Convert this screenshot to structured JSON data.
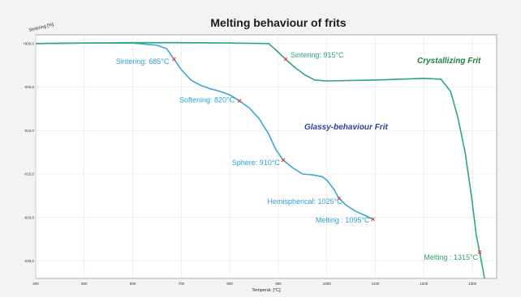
{
  "chart_data": {
    "type": "line",
    "title": "Melting behaviour of frits",
    "xlabel": "Temperat. [°C]",
    "ylabel": "Sintering [%]",
    "xlim": [
      400,
      1350
    ],
    "ylim": [
      -27,
      1
    ],
    "x_ticks": [
      "400",
      "500",
      "600",
      "700",
      "800",
      "900",
      "1000",
      "1100",
      "1200",
      "1300"
    ],
    "y_ticks": [
      "+000,0",
      "-005,0",
      "-010,0",
      "-015,0",
      "-020,0",
      "-025,0"
    ],
    "grid": true,
    "series": [
      {
        "name": "Glassy-behaviour Frit",
        "color": "#3aa6d6",
        "points": [
          [
            400,
            0
          ],
          [
            500,
            0.05
          ],
          [
            550,
            0.05
          ],
          [
            600,
            0.05
          ],
          [
            650,
            -0.2
          ],
          [
            670,
            -0.6
          ],
          [
            685,
            -1.8
          ],
          [
            700,
            -3.0
          ],
          [
            720,
            -4.2
          ],
          [
            740,
            -4.8
          ],
          [
            760,
            -5.2
          ],
          [
            780,
            -5.5
          ],
          [
            800,
            -5.9
          ],
          [
            820,
            -6.6
          ],
          [
            840,
            -7.4
          ],
          [
            860,
            -8.6
          ],
          [
            880,
            -10.4
          ],
          [
            895,
            -12.2
          ],
          [
            910,
            -13.4
          ],
          [
            930,
            -14.3
          ],
          [
            950,
            -15.0
          ],
          [
            970,
            -15.1
          ],
          [
            990,
            -15.3
          ],
          [
            1000,
            -15.7
          ],
          [
            1015,
            -16.8
          ],
          [
            1025,
            -17.8
          ],
          [
            1040,
            -18.6
          ],
          [
            1060,
            -19.3
          ],
          [
            1080,
            -19.8
          ],
          [
            1095,
            -20.2
          ]
        ]
      },
      {
        "name": "Crystallizing Frit",
        "color": "#2aa878",
        "points": [
          [
            400,
            0
          ],
          [
            500,
            0.05
          ],
          [
            600,
            0.1
          ],
          [
            700,
            0.1
          ],
          [
            800,
            0.05
          ],
          [
            880,
            0.0
          ],
          [
            900,
            -1.0
          ],
          [
            915,
            -1.8
          ],
          [
            935,
            -2.8
          ],
          [
            955,
            -3.6
          ],
          [
            975,
            -4.2
          ],
          [
            1000,
            -4.3
          ],
          [
            1100,
            -4.2
          ],
          [
            1200,
            -4.0
          ],
          [
            1235,
            -4.1
          ],
          [
            1255,
            -5.5
          ],
          [
            1270,
            -8.5
          ],
          [
            1285,
            -12.5
          ],
          [
            1298,
            -17.5
          ],
          [
            1308,
            -22.0
          ],
          [
            1315,
            -24.0
          ],
          [
            1320,
            -25.5
          ],
          [
            1325,
            -27.0
          ]
        ]
      }
    ],
    "annotations": [
      {
        "series": 0,
        "label": "Sintering: 685°C",
        "x": 685,
        "y": -1.8
      },
      {
        "series": 0,
        "label": "Softening: 820°C",
        "x": 820,
        "y": -6.6
      },
      {
        "series": 0,
        "label": "Sphere: 910°C",
        "x": 910,
        "y": -13.4
      },
      {
        "series": 0,
        "label": "Hemispherical: 1025°C",
        "x": 1025,
        "y": -17.8
      },
      {
        "series": 0,
        "label": "Melting : 1095°C",
        "x": 1095,
        "y": -20.2
      },
      {
        "series": 1,
        "label": "Sintering: 915°C",
        "x": 915,
        "y": -1.8
      },
      {
        "series": 1,
        "label": "Melting : 1315°C",
        "x": 1315,
        "y": -24.0
      }
    ],
    "marker_color": "#d94040"
  }
}
